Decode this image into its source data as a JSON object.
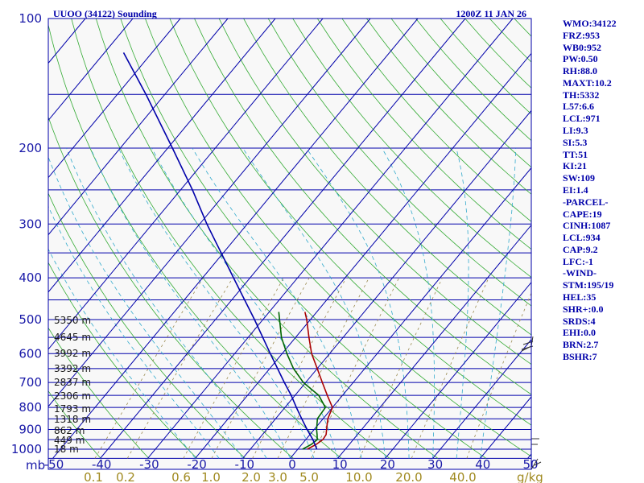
{
  "header": {
    "station": "UUOO (34122) Sounding",
    "time": "1200Z 11 JAN 26"
  },
  "indices": [
    "WMO:34122",
    "FRZ:953",
    "WB0:952",
    "PW:0.50",
    "RH:88.0",
    "MAXT:10.2",
    "TH:5332",
    "L57:6.6",
    "LCL:971",
    "LI:9.3",
    "SI:5.3",
    "TT:51",
    "KI:21",
    "SW:109",
    "EI:1.4",
    "-PARCEL-",
    "CAPE:19",
    "CINH:1087",
    "LCL:934",
    "CAP:9.2",
    "LFC:-1",
    "-WIND-",
    "STM:195/19",
    "HEL:35",
    "SHR+:0.0",
    "SRDS:4",
    "EHI:0.0",
    "BRN:2.7",
    "BSHR:7"
  ],
  "chart_data": {
    "type": "line",
    "subtype": "skew-T log-P sounding",
    "pressure_axis": {
      "unit_label": "mb",
      "range_hpa": [
        1000,
        100
      ],
      "tick_labels": [
        "100",
        "200",
        "300",
        "400",
        "500",
        "600",
        "700",
        "800",
        "900",
        "1000"
      ]
    },
    "temperature_axis": {
      "range_c": [
        -50,
        50
      ],
      "tick_labels": [
        "-50",
        "-40",
        "-30",
        "-20",
        "-10",
        "0",
        "10",
        "20",
        "30",
        "40",
        "50"
      ]
    },
    "mixing_ratio_axis": {
      "unit_label": "g/kg",
      "tick_labels": [
        "0.1",
        "0.2",
        "0.6",
        "1.0",
        "2.0",
        "3.0",
        "5.0",
        "10.0",
        "20.0",
        "40.0"
      ]
    },
    "height_labels": [
      "5350 m",
      "4645 m",
      "3992 m",
      "3392 m",
      "2837 m",
      "2306 m",
      "1793 m",
      "1318 m",
      "862 m",
      "449 m",
      "18 m"
    ],
    "series": [
      {
        "name": "Temperature",
        "color": "#aa0000",
        "points": [
          {
            "p": 1000,
            "t": 2.0
          },
          {
            "p": 975,
            "t": 3.0
          },
          {
            "p": 950,
            "t": 3.6
          },
          {
            "p": 925,
            "t": 3.4
          },
          {
            "p": 900,
            "t": 2.6
          },
          {
            "p": 850,
            "t": 1.0
          },
          {
            "p": 800,
            "t": 0.0
          },
          {
            "p": 750,
            "t": -3.2
          },
          {
            "p": 700,
            "t": -6.5
          },
          {
            "p": 650,
            "t": -10.0
          },
          {
            "p": 600,
            "t": -13.8
          },
          {
            "p": 550,
            "t": -17.2
          },
          {
            "p": 500,
            "t": -20.8
          },
          {
            "p": 480,
            "t": -22.5
          }
        ]
      },
      {
        "name": "Dewpoint",
        "color": "#006600",
        "points": [
          {
            "p": 1000,
            "t": 1.0
          },
          {
            "p": 975,
            "t": 2.0
          },
          {
            "p": 950,
            "t": 2.4
          },
          {
            "p": 925,
            "t": 1.5
          },
          {
            "p": 900,
            "t": 0.5
          },
          {
            "p": 850,
            "t": -1.2
          },
          {
            "p": 800,
            "t": -1.5
          },
          {
            "p": 750,
            "t": -5.0
          },
          {
            "p": 700,
            "t": -10.5
          },
          {
            "p": 650,
            "t": -15.0
          },
          {
            "p": 600,
            "t": -19.0
          },
          {
            "p": 550,
            "t": -23.0
          },
          {
            "p": 500,
            "t": -26.5
          },
          {
            "p": 480,
            "t": -28.0
          }
        ]
      },
      {
        "name": "Parcel",
        "color": "#0000aa",
        "points": [
          {
            "p": 1000,
            "t": 4.0
          },
          {
            "p": 950,
            "t": 1.5
          },
          {
            "p": 900,
            "t": -1.5
          },
          {
            "p": 850,
            "t": -4.5
          },
          {
            "p": 800,
            "t": -7.6
          },
          {
            "p": 750,
            "t": -10.8
          },
          {
            "p": 700,
            "t": -14.5
          },
          {
            "p": 600,
            "t": -22.5
          },
          {
            "p": 500,
            "t": -31.8
          },
          {
            "p": 400,
            "t": -43.5
          },
          {
            "p": 300,
            "t": -58.5
          },
          {
            "p": 250,
            "t": -67.5
          },
          {
            "p": 200,
            "t": -79.0
          },
          {
            "p": 150,
            "t": -94.0
          },
          {
            "p": 120,
            "t": -106.0
          }
        ]
      }
    ]
  }
}
